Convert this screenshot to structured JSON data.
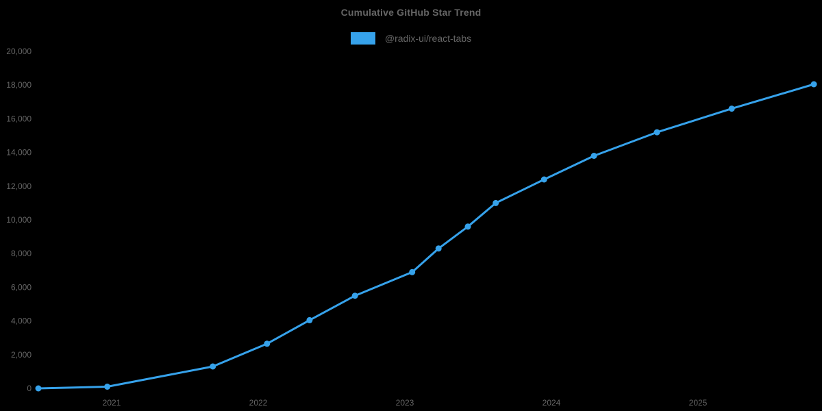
{
  "chart": {
    "title": "Cumulative GitHub Star Trend",
    "legend": [
      {
        "label": "@radix-ui/react-tabs",
        "color": "#36A2EB"
      }
    ]
  },
  "chart_data": {
    "type": "line",
    "title": "Cumulative GitHub Star Trend",
    "background_color": "#000000",
    "text_color": "#666666",
    "grid": false,
    "legend_position": "top",
    "x_axis": {
      "type": "time-years",
      "tick_labels": [
        "2021",
        "2022",
        "2023",
        "2024",
        "2025"
      ],
      "first_tick_year": 2021,
      "range": [
        2020.45,
        2025.85
      ]
    },
    "y_axis": {
      "min": 0,
      "max": 20000,
      "tick_step": 2000,
      "tick_labels": [
        "0",
        "2,000",
        "4,000",
        "6,000",
        "8,000",
        "10,000",
        "12,000",
        "14,000",
        "16,000",
        "18,000",
        "20,000"
      ]
    },
    "series": [
      {
        "name": "@radix-ui/react-tabs",
        "color": "#36A2EB",
        "point_style": "circle",
        "points": [
          {
            "date": "2020-06",
            "t": 2020.5,
            "stars": 0
          },
          {
            "date": "2020-12",
            "t": 2020.97,
            "stars": 100
          },
          {
            "date": "2021-09",
            "t": 2021.69,
            "stars": 1300
          },
          {
            "date": "2022-01",
            "t": 2022.06,
            "stars": 2650
          },
          {
            "date": "2022-05",
            "t": 2022.35,
            "stars": 4050
          },
          {
            "date": "2022-08",
            "t": 2022.66,
            "stars": 5500
          },
          {
            "date": "2023-01",
            "t": 2023.05,
            "stars": 6900
          },
          {
            "date": "2023-03",
            "t": 2023.23,
            "stars": 8300
          },
          {
            "date": "2023-06",
            "t": 2023.43,
            "stars": 9600
          },
          {
            "date": "2023-08",
            "t": 2023.62,
            "stars": 11000
          },
          {
            "date": "2023-12",
            "t": 2023.95,
            "stars": 12400
          },
          {
            "date": "2024-04",
            "t": 2024.29,
            "stars": 13800
          },
          {
            "date": "2024-09",
            "t": 2024.72,
            "stars": 15200
          },
          {
            "date": "2025-03",
            "t": 2025.23,
            "stars": 16600
          },
          {
            "date": "2025-10",
            "t": 2025.79,
            "stars": 18050
          }
        ]
      }
    ]
  }
}
